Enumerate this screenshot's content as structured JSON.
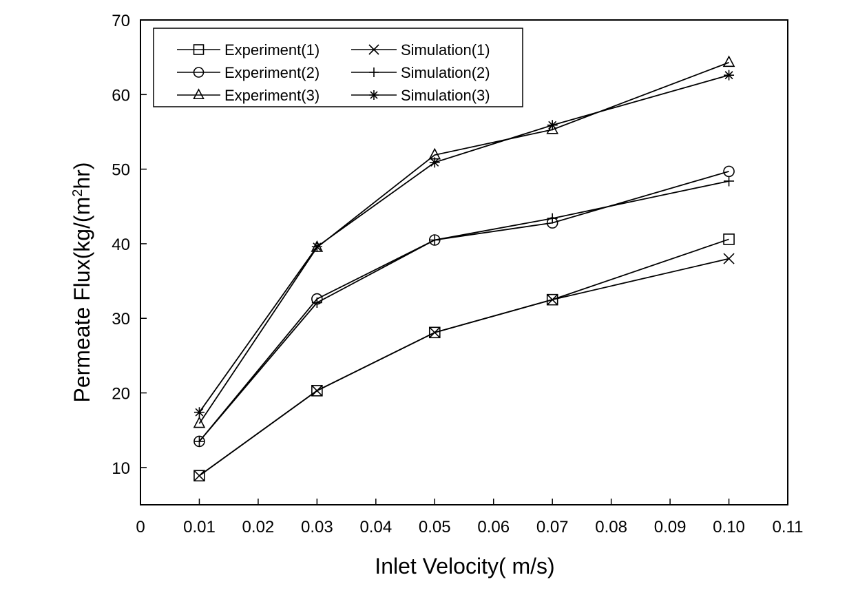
{
  "chart_data": {
    "type": "line",
    "title": "",
    "xlabel": "Inlet Velocity( m/s)",
    "ylabel": {
      "main": "Permeate Flux(kg/(m",
      "sup": "2",
      "tail": "hr)"
    },
    "xlim": [
      0,
      0.11
    ],
    "ylim": [
      5,
      70
    ],
    "xticks": [
      0,
      0.01,
      0.02,
      0.03,
      0.04,
      0.05,
      0.06,
      0.07,
      0.08,
      0.09,
      0.1,
      0.11
    ],
    "xtick_labels": [
      "0",
      "0.01",
      "0.02",
      "0.03",
      "0.04",
      "0.05",
      "0.06",
      "0.07",
      "0.08",
      "0.09",
      "0.10",
      "0.11"
    ],
    "yticks": [
      10,
      20,
      30,
      40,
      50,
      60,
      70
    ],
    "ytick_labels": [
      "10",
      "20",
      "30",
      "40",
      "50",
      "60",
      "70"
    ],
    "grid": false,
    "legend_position": "top-left",
    "x": [
      0.01,
      0.03,
      0.05,
      0.07,
      0.1
    ],
    "series": [
      {
        "name": "Experiment(1)",
        "marker": "square",
        "values": [
          8.9,
          20.3,
          28.1,
          32.5,
          40.6
        ]
      },
      {
        "name": "Experiment(2)",
        "marker": "circle",
        "values": [
          13.5,
          32.6,
          40.5,
          42.8,
          49.7
        ]
      },
      {
        "name": "Experiment(3)",
        "marker": "triangle",
        "values": [
          15.9,
          39.5,
          51.9,
          55.3,
          64.3
        ]
      },
      {
        "name": "Simulation(1)",
        "marker": "x",
        "values": [
          8.9,
          20.3,
          28.1,
          32.5,
          38.0
        ]
      },
      {
        "name": "Simulation(2)",
        "marker": "plus",
        "values": [
          13.5,
          32.1,
          40.5,
          43.4,
          48.4
        ]
      },
      {
        "name": "Simulation(3)",
        "marker": "asterisk",
        "values": [
          17.4,
          39.6,
          50.9,
          55.9,
          62.6
        ]
      }
    ],
    "colors": {
      "line": "#000000",
      "background": "#ffffff"
    }
  }
}
